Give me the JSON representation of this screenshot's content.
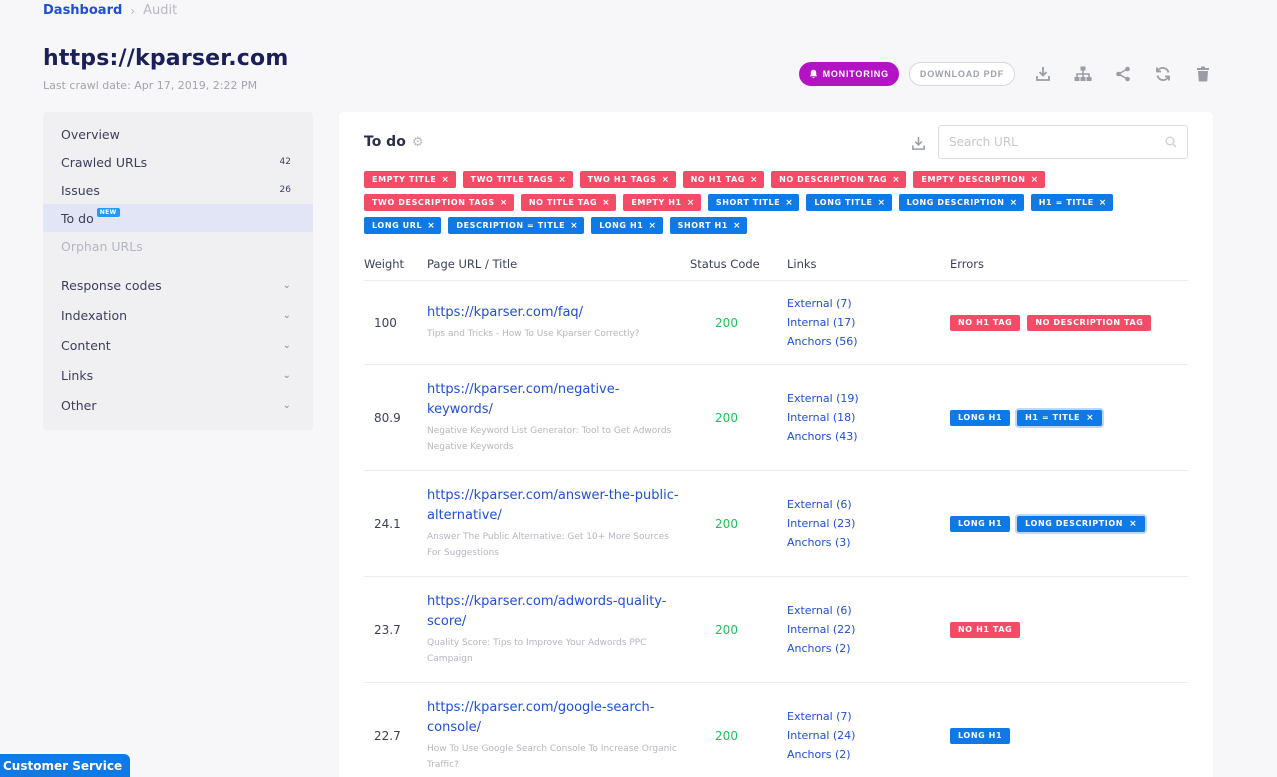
{
  "breadcrumb": {
    "home": "Dashboard",
    "separator": "›",
    "current": "Audit"
  },
  "site": {
    "title": "https://kparser.com",
    "crawl_date": "Last crawl date: Apr 17, 2019, 2:22 PM"
  },
  "actions": {
    "monitoring_label": "MONITORING",
    "download_pdf_label": "DOWNLOAD PDF",
    "icons": [
      "download-icon",
      "sitemap-icon",
      "share-icon",
      "refresh-icon",
      "trash-icon"
    ]
  },
  "sidebar": {
    "items": [
      {
        "label": "Overview",
        "count": ""
      },
      {
        "label": "Crawled URLs",
        "count": "42"
      },
      {
        "label": "Issues",
        "count": "26"
      },
      {
        "label": "To do",
        "count": "",
        "badge": "NEW"
      },
      {
        "label": "Orphan URLs",
        "count": ""
      }
    ],
    "groups": [
      {
        "label": "Response codes"
      },
      {
        "label": "Indexation"
      },
      {
        "label": "Content"
      },
      {
        "label": "Links"
      },
      {
        "label": "Other"
      }
    ]
  },
  "panel": {
    "title": "To do",
    "search_placeholder": "Search URL",
    "filters_row1": [
      "EMPTY TITLE",
      "TWO TITLE TAGS",
      "TWO H1 TAGS",
      "NO H1 TAG",
      "NO DESCRIPTION TAG",
      "EMPTY DESCRIPTION"
    ],
    "filters_row2": [
      "TWO DESCRIPTION TAGS",
      "NO TITLE TAG",
      "EMPTY H1",
      "SHORT TITLE",
      "LONG TITLE",
      "LONG DESCRIPTION",
      "H1 = TITLE"
    ],
    "filters_row3": [
      "LONG URL",
      "DESCRIPTION = TITLE",
      "LONG H1",
      "SHORT H1"
    ],
    "filter_colors": {
      "red": "#f44b67",
      "blue": "#0f7ae5"
    },
    "remove_symbol": "×"
  },
  "table": {
    "headers": {
      "weight": "Weight",
      "url": "Page URL / Title",
      "status": "Status Code",
      "links": "Links",
      "errors": "Errors"
    },
    "rows": [
      {
        "weight": "100",
        "url": "https://kparser.com/faq/",
        "title": "Tips and Tricks - How To Use Kparser Correctly?",
        "status": "200",
        "external": "External (7)",
        "internal": "Internal (17)",
        "anchors": "Anchors (56)",
        "errors": [
          {
            "label": "NO H1 TAG",
            "color": "red"
          },
          {
            "label": "NO DESCRIPTION TAG",
            "color": "red"
          }
        ]
      },
      {
        "weight": "80.9",
        "url": "https://kparser.com/negative-keywords/",
        "title": "Negative Keyword List Generator: Tool to Get Adwords Negative Keywords",
        "status": "200",
        "external": "External (19)",
        "internal": "Internal (18)",
        "anchors": "Anchors (43)",
        "errors": [
          {
            "label": "LONG H1",
            "color": "blue"
          },
          {
            "label": "H1 = TITLE",
            "color": "blue",
            "removable": true
          }
        ]
      },
      {
        "weight": "24.1",
        "url": "https://kparser.com/answer-the-public-alternative/",
        "title": "Answer The Public Alternative: Get 10+ More Sources For Suggestions",
        "status": "200",
        "external": "External (6)",
        "internal": "Internal (23)",
        "anchors": "Anchors (3)",
        "errors": [
          {
            "label": "LONG H1",
            "color": "blue"
          },
          {
            "label": "LONG DESCRIPTION",
            "color": "blue",
            "removable": true
          }
        ]
      },
      {
        "weight": "23.7",
        "url": "https://kparser.com/adwords-quality-score/",
        "title": "Quality Score: Tips to Improve Your Adwords PPC Campaign",
        "status": "200",
        "external": "External (6)",
        "internal": "Internal (22)",
        "anchors": "Anchors (2)",
        "errors": [
          {
            "label": "NO H1 TAG",
            "color": "red"
          }
        ]
      },
      {
        "weight": "22.7",
        "url": "https://kparser.com/google-search-console/",
        "title": "How To Use Google Search Console To Increase Organic Traffic?",
        "status": "200",
        "external": "External (7)",
        "internal": "Internal (24)",
        "anchors": "Anchors (2)",
        "errors": [
          {
            "label": "LONG H1",
            "color": "blue"
          }
        ]
      }
    ]
  },
  "footer": {
    "customer_service": "Customer Service"
  }
}
